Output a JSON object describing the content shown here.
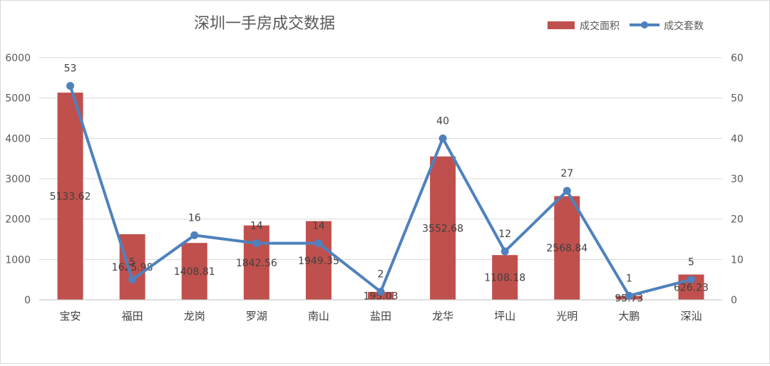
{
  "chart_data": {
    "type": "bar",
    "title": "深圳一手房成交数据",
    "categories": [
      "宝安",
      "福田",
      "龙岗",
      "罗湖",
      "南山",
      "盐田",
      "龙华",
      "坪山",
      "光明",
      "大鹏",
      "深汕"
    ],
    "series": [
      {
        "name": "成交面积",
        "type": "bar",
        "axis": "left",
        "color": "#c0504d",
        "values": [
          5133.62,
          1625.98,
          1408.81,
          1842.56,
          1949.35,
          195.03,
          3552.68,
          1108.18,
          2568.84,
          95.73,
          626.23
        ],
        "labels": [
          "5133.62",
          "1625.98",
          "1408.81",
          "1842.56",
          "1949.35",
          "195.03",
          "3552.68",
          "1108.18",
          "2568.84",
          "95.73",
          "626.23"
        ]
      },
      {
        "name": "成交套数",
        "type": "line",
        "axis": "right",
        "color": "#4f81bd",
        "values": [
          53,
          5,
          16,
          14,
          14,
          2,
          40,
          12,
          27,
          1,
          5
        ],
        "labels": [
          "53",
          "5",
          "16",
          "14",
          "14",
          "2",
          "40",
          "12",
          "27",
          "1",
          "5"
        ]
      }
    ],
    "y_left": {
      "min": 0,
      "max": 6000,
      "ticks": [
        "0",
        "1000",
        "2000",
        "3000",
        "4000",
        "5000",
        "6000"
      ]
    },
    "y_right": {
      "min": 0,
      "max": 60,
      "ticks": [
        "0",
        "10",
        "20",
        "30",
        "40",
        "50",
        "60"
      ]
    },
    "grid": true,
    "legend_position": "top-right"
  }
}
